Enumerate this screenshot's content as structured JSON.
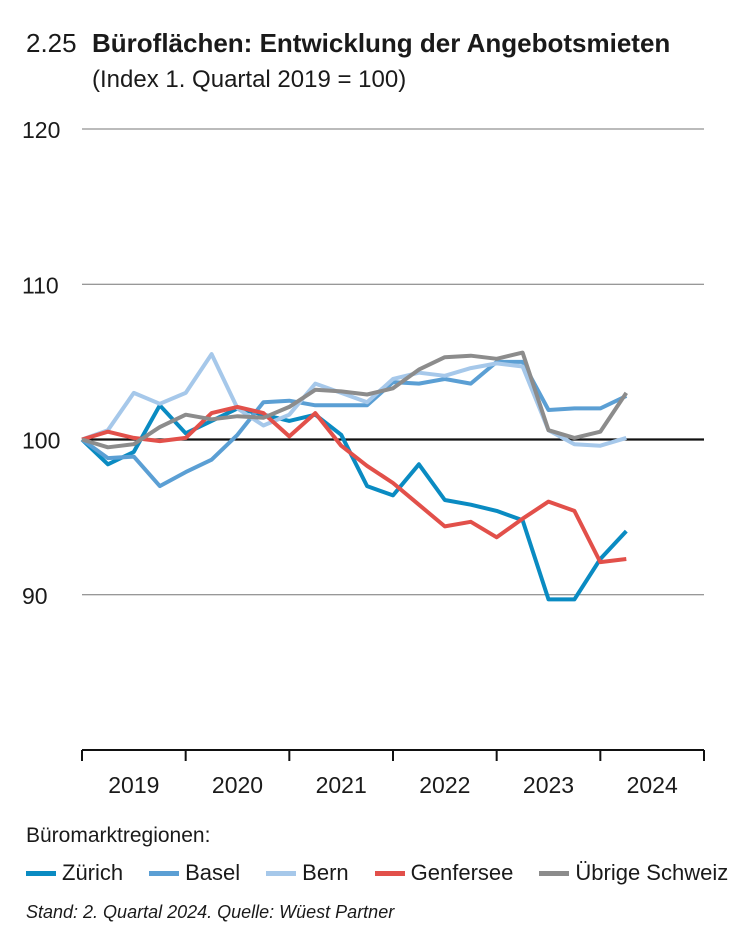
{
  "chart_data": {
    "type": "line",
    "figure_number": "2.25",
    "title": "Büroflächen: Entwicklung der Angebotsmieten",
    "subtitle": "(Index 1. Quartal 2019 = 100)",
    "ylim": [
      80,
      120
    ],
    "yticks": [
      "120",
      "110",
      "100",
      "90"
    ],
    "ytick_values": [
      120,
      110,
      100,
      90
    ],
    "reference_line": 100,
    "x_start": 2019.0,
    "x_end": 2025.0,
    "xtick_labels": [
      "2019",
      "2020",
      "2021",
      "2022",
      "2023",
      "2024"
    ],
    "x": [
      2019.0,
      2019.25,
      2019.5,
      2019.75,
      2020.0,
      2020.25,
      2020.5,
      2020.75,
      2021.0,
      2021.25,
      2021.5,
      2021.75,
      2022.0,
      2022.25,
      2022.5,
      2022.75,
      2023.0,
      2023.25,
      2023.5,
      2023.75,
      2024.0,
      2024.25
    ],
    "series": [
      {
        "name": "Zürich",
        "color": "#0a8bc2",
        "values": [
          100,
          98.4,
          99.2,
          102.2,
          100.4,
          101.2,
          102,
          101.6,
          101.2,
          101.6,
          100.3,
          97,
          96.4,
          98.4,
          96.1,
          95.8,
          95.4,
          94.8,
          89.7,
          89.7,
          92.3,
          94.1
        ]
      },
      {
        "name": "Basel",
        "color": "#5b9fd4",
        "values": [
          100,
          98.8,
          98.9,
          97,
          97.9,
          98.7,
          100.3,
          102.4,
          102.5,
          102.2,
          102.2,
          102.2,
          103.7,
          103.6,
          103.9,
          103.6,
          105,
          105,
          101.9,
          102,
          102,
          102.8
        ]
      },
      {
        "name": "Bern",
        "color": "#a6c8ea",
        "values": [
          100,
          100.6,
          103,
          102.3,
          103,
          105.5,
          102,
          100.9,
          101.6,
          103.6,
          103,
          102.4,
          103.9,
          104.3,
          104.1,
          104.6,
          104.9,
          104.7,
          100.6,
          99.7,
          99.6,
          100.1
        ]
      },
      {
        "name": "Genfersee",
        "color": "#e2504a",
        "values": [
          100,
          100.5,
          100.1,
          99.9,
          100.1,
          101.7,
          102.1,
          101.7,
          100.2,
          101.7,
          99.6,
          98.3,
          97.2,
          95.8,
          94.4,
          94.7,
          93.7,
          94.9,
          96,
          95.4,
          92.1,
          92.3
        ]
      },
      {
        "name": "Übrige Schweiz",
        "color": "#8c8c8c",
        "values": [
          100,
          99.5,
          99.7,
          100.8,
          101.6,
          101.3,
          101.5,
          101.4,
          102.1,
          103.2,
          103.1,
          102.9,
          103.3,
          104.5,
          105.3,
          105.4,
          105.2,
          105.6,
          100.6,
          100.1,
          100.5,
          103
        ]
      }
    ]
  },
  "legend": {
    "title": "Büromarktregionen:"
  },
  "footer": {
    "source": "Stand: 2. Quartal 2024. Quelle: Wüest Partner"
  }
}
